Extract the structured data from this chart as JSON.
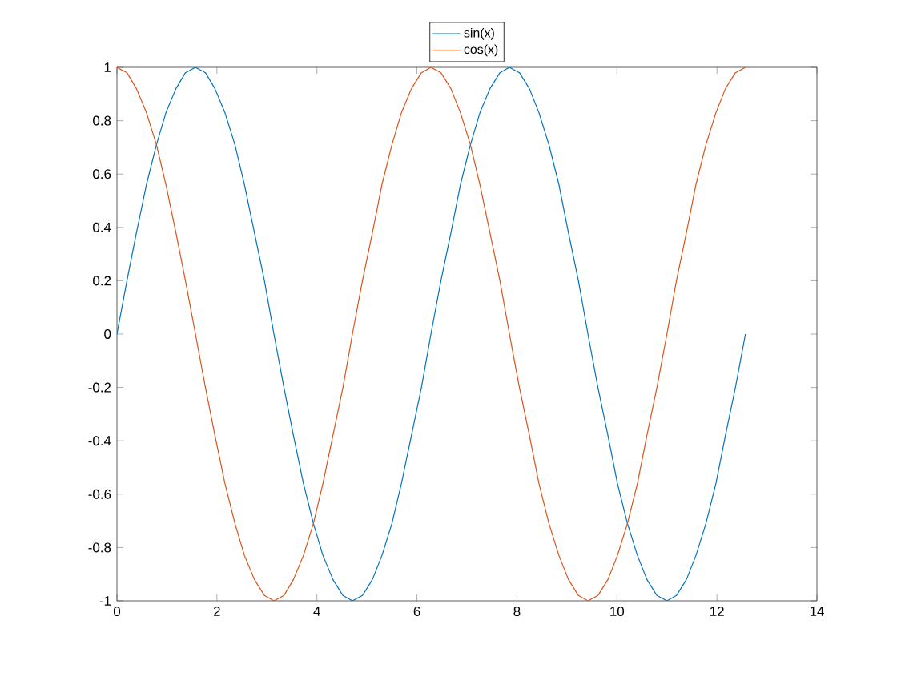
{
  "chart_data": {
    "type": "line",
    "x": [
      0,
      0.2,
      0.39,
      0.59,
      0.79,
      0.98,
      1.18,
      1.37,
      1.57,
      1.77,
      1.96,
      2.16,
      2.36,
      2.55,
      2.75,
      2.95,
      3.14,
      3.34,
      3.53,
      3.73,
      3.93,
      4.12,
      4.32,
      4.52,
      4.71,
      4.91,
      5.11,
      5.3,
      5.5,
      5.69,
      5.89,
      6.09,
      6.28,
      6.48,
      6.68,
      6.87,
      7.07,
      7.26,
      7.46,
      7.66,
      7.85,
      8.05,
      8.25,
      8.44,
      8.64,
      8.84,
      9.03,
      9.23,
      9.42,
      9.62,
      9.82,
      10.01,
      10.21,
      10.41,
      10.6,
      10.8,
      11.0,
      11.19,
      11.39,
      11.58,
      11.78,
      11.98,
      12.17,
      12.37,
      12.57
    ],
    "series": [
      {
        "name": "sin(x)",
        "color": "#0072bd",
        "values": [
          0,
          0.2,
          0.38,
          0.56,
          0.71,
          0.83,
          0.92,
          0.98,
          1,
          0.98,
          0.92,
          0.83,
          0.71,
          0.56,
          0.38,
          0.2,
          0,
          -0.2,
          -0.38,
          -0.56,
          -0.71,
          -0.83,
          -0.92,
          -0.98,
          -1,
          -0.98,
          -0.92,
          -0.83,
          -0.71,
          -0.56,
          -0.38,
          -0.2,
          0,
          0.2,
          0.38,
          0.56,
          0.71,
          0.83,
          0.92,
          0.98,
          1,
          0.98,
          0.92,
          0.83,
          0.71,
          0.56,
          0.38,
          0.2,
          0,
          -0.2,
          -0.38,
          -0.56,
          -0.71,
          -0.83,
          -0.92,
          -0.98,
          -1,
          -0.98,
          -0.92,
          -0.83,
          -0.71,
          -0.56,
          -0.38,
          -0.2,
          0
        ]
      },
      {
        "name": "cos(x)",
        "color": "#d95319",
        "values": [
          1,
          0.98,
          0.92,
          0.83,
          0.71,
          0.56,
          0.38,
          0.2,
          0,
          -0.2,
          -0.38,
          -0.56,
          -0.71,
          -0.83,
          -0.92,
          -0.98,
          -1,
          -0.98,
          -0.92,
          -0.83,
          -0.71,
          -0.56,
          -0.38,
          -0.2,
          0,
          0.2,
          0.38,
          0.56,
          0.71,
          0.83,
          0.92,
          0.98,
          1,
          0.98,
          0.92,
          0.83,
          0.71,
          0.56,
          0.38,
          0.2,
          0,
          -0.2,
          -0.38,
          -0.56,
          -0.71,
          -0.83,
          -0.92,
          -0.98,
          -1,
          -0.98,
          -0.92,
          -0.83,
          -0.71,
          -0.56,
          -0.38,
          -0.2,
          0,
          0.2,
          0.38,
          0.56,
          0.71,
          0.83,
          0.92,
          0.98,
          1
        ]
      }
    ],
    "xlim": [
      0,
      14
    ],
    "xticks": [
      0,
      2,
      4,
      6,
      8,
      10,
      12,
      14
    ],
    "ylim": [
      -1,
      1
    ],
    "yticks": [
      -1,
      -0.8,
      -0.6,
      -0.4,
      -0.2,
      0,
      0.2,
      0.4,
      0.6,
      0.8,
      1
    ],
    "legend": "top",
    "marker": "none",
    "line_style": "solid"
  }
}
